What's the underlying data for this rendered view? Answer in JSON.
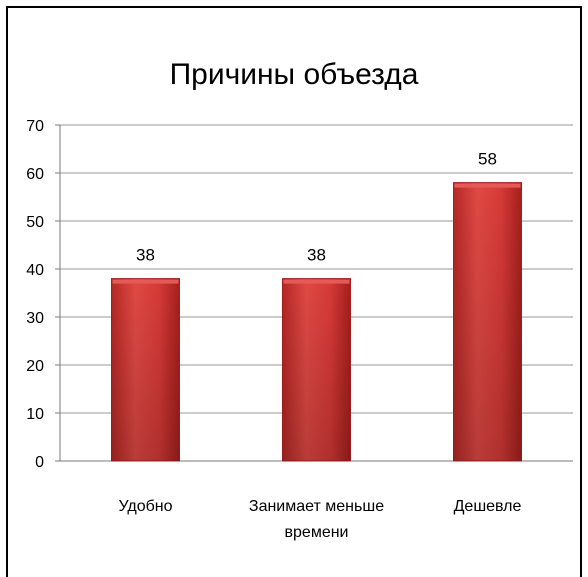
{
  "chart_data": {
    "type": "bar",
    "title": "Причины объезда",
    "categories": [
      [
        "Удобно"
      ],
      [
        "Занимает меньше",
        "времени"
      ],
      [
        "Дешевле"
      ]
    ],
    "values": [
      38,
      38,
      58
    ],
    "ylim": [
      0,
      70
    ],
    "yticks": [
      0,
      10,
      20,
      30,
      40,
      50,
      60,
      70
    ],
    "grid": true,
    "legend": "none",
    "colors": {
      "bar": "#d63a37",
      "bar_dark": "#a51f1d",
      "bar_light": "#e45a55",
      "grid": "#9a9a9a"
    }
  }
}
